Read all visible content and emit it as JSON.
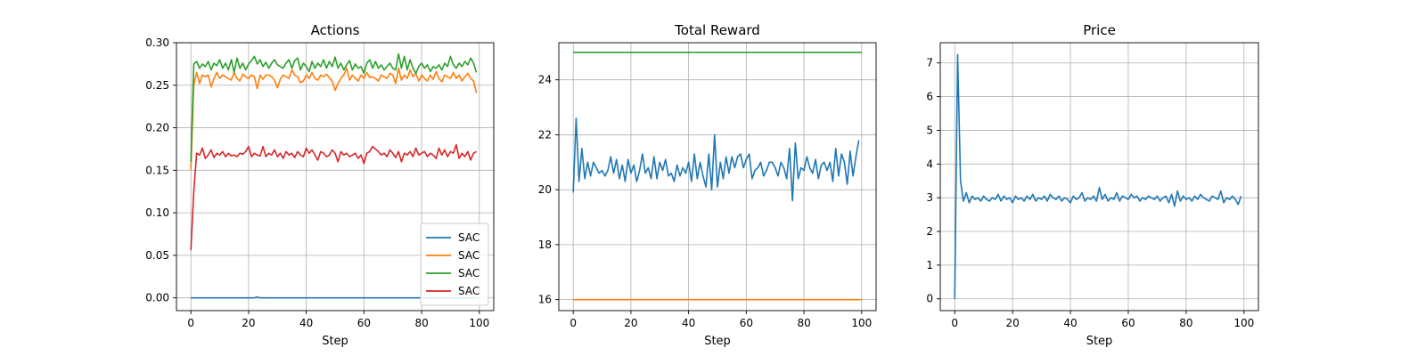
{
  "figure": {
    "width": 1600,
    "height": 400
  },
  "chart_data": [
    {
      "type": "line",
      "title": "Actions",
      "xlabel": "Step",
      "ylabel": "",
      "xlim": [
        -5,
        105
      ],
      "ylim": [
        -0.015,
        0.3
      ],
      "xticks": [
        0,
        20,
        40,
        60,
        80,
        100
      ],
      "yticks": [
        0.0,
        0.05,
        0.1,
        0.15,
        0.2,
        0.25,
        0.3
      ],
      "ytick_labels": [
        "0.00",
        "0.05",
        "0.10",
        "0.15",
        "0.20",
        "0.25",
        "0.30"
      ],
      "grid": true,
      "legend": {
        "placement": "lower-right",
        "entries": [
          "SAC",
          "SAC",
          "SAC",
          "SAC"
        ]
      },
      "series": [
        {
          "name": "SAC",
          "color": "#1f77b4",
          "x_start": 0,
          "x_step": 1,
          "values": [
            0.0,
            0.0,
            0.0,
            0.0,
            0.0,
            0.0,
            0.0,
            0.0,
            0.0,
            0.0,
            0.0,
            0.0,
            0.0,
            0.0,
            0.0,
            0.0,
            0.0,
            0.0,
            0.0,
            0.0,
            0.0,
            0.0,
            0.0,
            0.001,
            0.0,
            0.0,
            0.0,
            0.0,
            0.0,
            0.0,
            0.0,
            0.0,
            0.0,
            0.0,
            0.0,
            0.0,
            0.0,
            0.0,
            0.0,
            0.0,
            0.0,
            0.0,
            0.0,
            0.0,
            0.0,
            0.0,
            0.0,
            0.0,
            0.0,
            0.0,
            0.0,
            0.0,
            0.0,
            0.0,
            0.0,
            0.0,
            0.0,
            0.0,
            0.0,
            0.0,
            0.0,
            0.0,
            0.0,
            0.0,
            0.0,
            0.0,
            0.0,
            0.0,
            0.0,
            0.0,
            0.0,
            0.0,
            0.0,
            0.0,
            0.0,
            0.0,
            0.0,
            0.0,
            0.0,
            0.0,
            0.0,
            0.0,
            0.0,
            0.0,
            0.0,
            0.0,
            0.0,
            0.0,
            0.0,
            0.0,
            0.0,
            0.0,
            0.0,
            0.0,
            0.0,
            0.0,
            0.0,
            0.0,
            0.0,
            0.0
          ]
        },
        {
          "name": "SAC",
          "color": "#ff7f0e",
          "x_start": 0,
          "x_step": 1,
          "values": [
            0.15,
            0.25,
            0.265,
            0.252,
            0.262,
            0.26,
            0.262,
            0.248,
            0.258,
            0.265,
            0.258,
            0.262,
            0.26,
            0.258,
            0.256,
            0.265,
            0.258,
            0.255,
            0.263,
            0.26,
            0.258,
            0.262,
            0.26,
            0.246,
            0.262,
            0.257,
            0.262,
            0.262,
            0.26,
            0.256,
            0.247,
            0.257,
            0.262,
            0.26,
            0.258,
            0.268,
            0.262,
            0.26,
            0.253,
            0.255,
            0.262,
            0.258,
            0.265,
            0.258,
            0.256,
            0.262,
            0.26,
            0.263,
            0.259,
            0.255,
            0.244,
            0.252,
            0.258,
            0.262,
            0.27,
            0.256,
            0.262,
            0.258,
            0.255,
            0.262,
            0.258,
            0.265,
            0.259,
            0.26,
            0.258,
            0.255,
            0.262,
            0.26,
            0.258,
            0.264,
            0.262,
            0.252,
            0.27,
            0.256,
            0.262,
            0.258,
            0.268,
            0.26,
            0.264,
            0.255,
            0.262,
            0.258,
            0.255,
            0.262,
            0.257,
            0.266,
            0.258,
            0.254,
            0.262,
            0.26,
            0.258,
            0.265,
            0.258,
            0.262,
            0.255,
            0.26,
            0.264,
            0.258,
            0.255,
            0.241
          ]
        },
        {
          "name": "SAC",
          "color": "#2ca02c",
          "x_start": 0,
          "x_step": 1,
          "values": [
            0.16,
            0.275,
            0.278,
            0.27,
            0.275,
            0.272,
            0.278,
            0.268,
            0.276,
            0.273,
            0.28,
            0.27,
            0.276,
            0.268,
            0.28,
            0.265,
            0.282,
            0.27,
            0.276,
            0.268,
            0.275,
            0.279,
            0.284,
            0.275,
            0.28,
            0.272,
            0.277,
            0.27,
            0.276,
            0.28,
            0.274,
            0.272,
            0.27,
            0.276,
            0.28,
            0.27,
            0.279,
            0.282,
            0.268,
            0.276,
            0.272,
            0.266,
            0.278,
            0.27,
            0.276,
            0.272,
            0.28,
            0.27,
            0.278,
            0.272,
            0.283,
            0.27,
            0.276,
            0.268,
            0.274,
            0.279,
            0.268,
            0.275,
            0.27,
            0.272,
            0.264,
            0.276,
            0.28,
            0.27,
            0.278,
            0.27,
            0.274,
            0.268,
            0.272,
            0.276,
            0.27,
            0.268,
            0.287,
            0.27,
            0.284,
            0.268,
            0.28,
            0.27,
            0.264,
            0.272,
            0.276,
            0.27,
            0.274,
            0.266,
            0.272,
            0.27,
            0.274,
            0.268,
            0.276,
            0.272,
            0.284,
            0.274,
            0.27,
            0.276,
            0.272,
            0.278,
            0.274,
            0.282,
            0.276,
            0.265
          ]
        },
        {
          "name": "SAC",
          "color": "#d62728",
          "x_start": 0,
          "x_step": 1,
          "values": [
            0.056,
            0.125,
            0.17,
            0.168,
            0.176,
            0.164,
            0.168,
            0.174,
            0.165,
            0.17,
            0.168,
            0.172,
            0.166,
            0.17,
            0.167,
            0.168,
            0.166,
            0.17,
            0.169,
            0.172,
            0.178,
            0.166,
            0.17,
            0.168,
            0.167,
            0.178,
            0.166,
            0.17,
            0.168,
            0.174,
            0.166,
            0.17,
            0.164,
            0.172,
            0.168,
            0.17,
            0.165,
            0.172,
            0.168,
            0.166,
            0.176,
            0.17,
            0.174,
            0.168,
            0.162,
            0.172,
            0.17,
            0.166,
            0.168,
            0.174,
            0.17,
            0.16,
            0.172,
            0.168,
            0.17,
            0.166,
            0.168,
            0.17,
            0.164,
            0.168,
            0.158,
            0.17,
            0.172,
            0.178,
            0.175,
            0.172,
            0.168,
            0.17,
            0.166,
            0.174,
            0.17,
            0.165,
            0.172,
            0.16,
            0.17,
            0.168,
            0.172,
            0.166,
            0.176,
            0.168,
            0.17,
            0.172,
            0.166,
            0.17,
            0.168,
            0.164,
            0.176,
            0.168,
            0.174,
            0.166,
            0.172,
            0.17,
            0.18,
            0.164,
            0.17,
            0.166,
            0.172,
            0.162,
            0.17,
            0.172
          ]
        }
      ]
    },
    {
      "type": "line",
      "title": "Total Reward",
      "xlabel": "Step",
      "ylabel": "",
      "xlim": [
        -5,
        105
      ],
      "ylim": [
        15.6,
        25.35
      ],
      "xticks": [
        0,
        20,
        40,
        60,
        80,
        100
      ],
      "yticks": [
        16,
        18,
        20,
        22,
        24
      ],
      "ytick_labels": [
        "16",
        "18",
        "20",
        "22",
        "24"
      ],
      "grid": true,
      "series": [
        {
          "color": "#1f77b4",
          "x_start": 0,
          "x_step": 1,
          "values": [
            19.9,
            22.6,
            20.3,
            21.5,
            20.4,
            21.0,
            20.5,
            21.0,
            20.8,
            20.6,
            20.7,
            20.5,
            20.7,
            21.2,
            20.6,
            21.1,
            20.4,
            20.9,
            20.3,
            21.1,
            20.6,
            20.9,
            20.3,
            20.7,
            21.3,
            20.6,
            20.8,
            20.4,
            21.2,
            20.4,
            21.0,
            20.7,
            21.1,
            20.5,
            20.6,
            20.3,
            20.9,
            20.5,
            20.8,
            20.6,
            21.0,
            20.3,
            21.3,
            20.4,
            21.0,
            20.5,
            20.1,
            21.3,
            20.0,
            22.0,
            20.1,
            21.0,
            20.4,
            21.2,
            20.6,
            21.2,
            20.8,
            21.2,
            21.3,
            20.8,
            21.1,
            21.3,
            20.4,
            20.7,
            20.8,
            21.0,
            20.5,
            20.7,
            21.0,
            21.0,
            20.8,
            20.5,
            21.0,
            20.8,
            20.4,
            21.5,
            19.6,
            21.7,
            20.4,
            20.8,
            20.7,
            21.2,
            20.8,
            20.6,
            21.1,
            20.4,
            20.9,
            21.0,
            20.7,
            21.0,
            20.3,
            21.5,
            20.5,
            21.3,
            21.0,
            20.2,
            21.4,
            20.5,
            21.2,
            21.8
          ]
        },
        {
          "color": "#ff7f0e",
          "points": [
            [
              0,
              16.0
            ],
            [
              100,
              16.0
            ]
          ]
        },
        {
          "color": "#2ca02c",
          "points": [
            [
              0,
              25.0
            ],
            [
              100,
              25.0
            ]
          ]
        }
      ]
    },
    {
      "type": "line",
      "title": "Price",
      "xlabel": "Step",
      "ylabel": "",
      "xlim": [
        -5,
        105
      ],
      "ylim": [
        -0.35,
        7.6
      ],
      "xticks": [
        0,
        20,
        40,
        60,
        80,
        100
      ],
      "yticks": [
        0,
        1,
        2,
        3,
        4,
        5,
        6,
        7
      ],
      "ytick_labels": [
        "0",
        "1",
        "2",
        "3",
        "4",
        "5",
        "6",
        "7"
      ],
      "grid": true,
      "series": [
        {
          "color": "#1f77b4",
          "x_start": 0,
          "x_step": 1,
          "values": [
            0.0,
            7.25,
            3.5,
            2.9,
            3.15,
            2.85,
            3.05,
            2.95,
            3.0,
            2.9,
            3.05,
            2.95,
            2.9,
            3.0,
            2.95,
            3.1,
            2.9,
            3.05,
            2.95,
            3.0,
            2.85,
            3.05,
            2.95,
            3.0,
            2.9,
            3.05,
            2.95,
            3.1,
            2.9,
            3.0,
            2.95,
            3.05,
            2.9,
            3.1,
            3.0,
            2.95,
            3.05,
            2.9,
            3.0,
            2.95,
            2.85,
            3.05,
            2.95,
            3.0,
            3.15,
            2.9,
            3.0,
            2.95,
            3.05,
            2.9,
            3.3,
            2.95,
            3.1,
            2.9,
            3.0,
            2.95,
            3.15,
            2.9,
            3.05,
            3.0,
            2.95,
            3.1,
            3.0,
            3.05,
            2.9,
            3.0,
            2.95,
            3.05,
            3.0,
            2.95,
            3.05,
            2.9,
            3.0,
            3.05,
            2.85,
            3.1,
            2.75,
            3.2,
            2.9,
            3.05,
            2.95,
            3.0,
            2.9,
            3.05,
            2.95,
            3.1,
            3.0,
            2.95,
            2.9,
            3.05,
            3.0,
            2.95,
            3.2,
            2.85,
            3.0,
            2.95,
            3.05,
            2.95,
            2.8,
            3.05
          ]
        }
      ]
    }
  ]
}
